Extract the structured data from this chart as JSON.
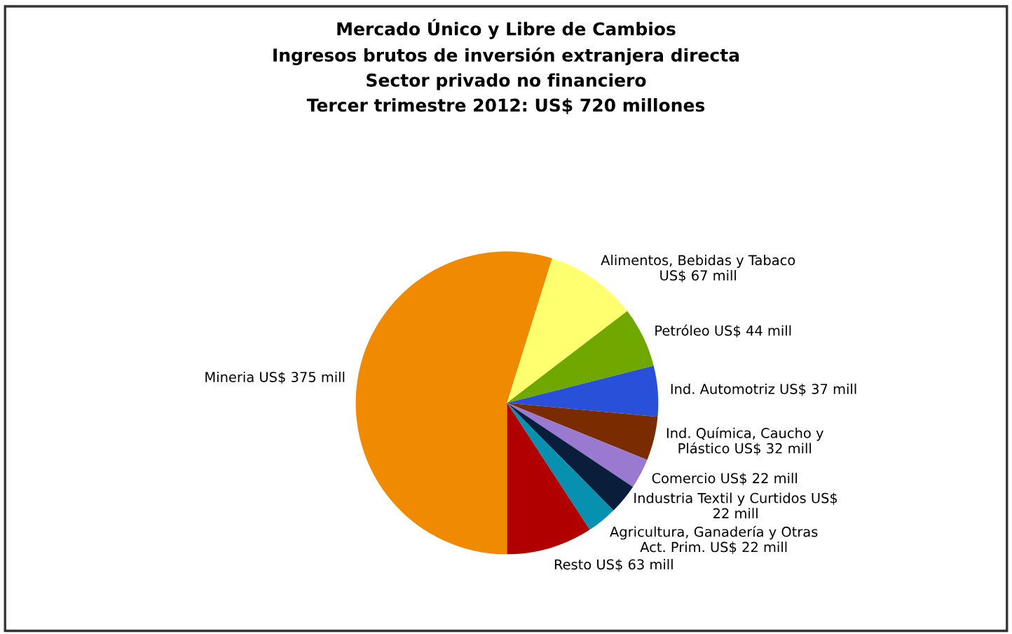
{
  "chart_data": {
    "type": "pie",
    "title": "Mercado Único y Libre de Cambios\nIngresos brutos de inversión extranjera directa\nSector privado no financiero\nTercer trimestre 2012: US$ 720 millones",
    "categories": [
      "Mineria US$ 375 mill",
      "Alimentos, Bebidas y Tabaco\nUS$ 67 mill",
      "Petróleo US$ 44 mill",
      "Ind. Automotriz US$ 37 mill",
      "Ind. Química, Caucho y\nPlástico US$ 32 mill",
      "Comercio US$ 22 mill",
      "Industria Textil y Curtidos US$\n22 mill",
      "Agricultura, Ganadería y Otras\nAct. Prim. US$ 22 mill",
      "Resto US$ 63 mill"
    ],
    "values": [
      375,
      67,
      44,
      37,
      32,
      22,
      22,
      22,
      63
    ],
    "colors": [
      "#f08a00",
      "#ffff70",
      "#70a800",
      "#2850d8",
      "#7a2c00",
      "#9a7ad0",
      "#0a1e3c",
      "#0890b0",
      "#b00000"
    ],
    "legend": false
  }
}
